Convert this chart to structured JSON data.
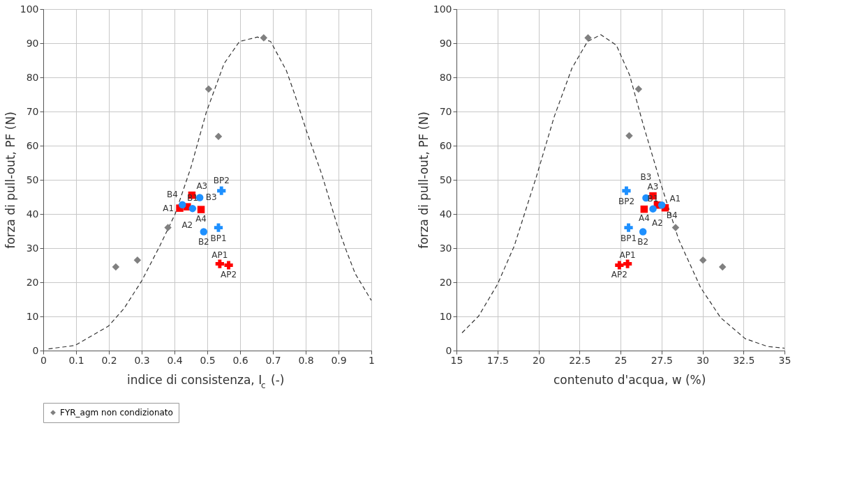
{
  "chart_data": [
    {
      "type": "scatter",
      "xlabel": "indice di consistenza, I$_{c}$ (-)",
      "ylabel": "forza di pull-out, PF (N)",
      "xlim": [
        0,
        1
      ],
      "ylim": [
        0,
        100
      ],
      "xticks": [
        0,
        0.1,
        0.2,
        0.3,
        0.4,
        0.5,
        0.6,
        0.7,
        0.8,
        0.9,
        1
      ],
      "yticks": [
        0,
        10,
        20,
        30,
        40,
        50,
        60,
        70,
        80,
        90,
        100
      ],
      "grid": true,
      "legend": "bottom",
      "series": [
        {
          "type": "line",
          "line_style": "dashed",
          "marker": "none",
          "color": "#333333",
          "x": [
            0.016,
            0.097,
            0.199,
            0.246,
            0.3,
            0.355,
            0.402,
            0.45,
            0.497,
            0.551,
            0.598,
            0.653,
            0.693,
            0.741,
            0.768,
            0.802,
            0.849,
            0.896,
            0.924,
            0.951,
            1.0
          ],
          "values": [
            0.5,
            1.5,
            7.2,
            12.3,
            20.4,
            30.6,
            40,
            53.6,
            69.8,
            84,
            90.5,
            91.8,
            90.5,
            82,
            74.6,
            64.4,
            51.6,
            36.7,
            29.2,
            22.5,
            14.7
          ]
        },
        {
          "name": "FYR_agm non condizionato",
          "marker": "diamond",
          "color": "#808080",
          "x": [
            0.221,
            0.287,
            0.38,
            0.504,
            0.534,
            0.672
          ],
          "values": [
            24.5,
            26.5,
            36.0,
            76.6,
            62.7,
            91.6
          ]
        },
        {
          "marker": "square",
          "color": "#ff0000",
          "x": [
            0.416,
            0.439,
            0.453,
            0.481
          ],
          "values": [
            41.7,
            42.1,
            45.5,
            41.3
          ],
          "value_labels": [
            "A1",
            "A2",
            "A3",
            "A4"
          ]
        },
        {
          "marker": "cross",
          "color": "#ff0000",
          "x": [
            0.538,
            0.565
          ],
          "values": [
            25.4,
            25.0
          ],
          "value_labels": [
            "AP1",
            "AP2"
          ]
        },
        {
          "marker": "circle",
          "color": "#1e90ff",
          "x": [
            0.455,
            0.489,
            0.477,
            0.424
          ],
          "values": [
            41.6,
            34.8,
            44.8,
            42.7
          ],
          "value_labels": [
            "B1",
            "B2",
            "B3",
            "B4"
          ]
        },
        {
          "marker": "cross",
          "color": "#1e90ff",
          "x": [
            0.534,
            0.543
          ],
          "values": [
            36.0,
            46.8
          ],
          "value_labels": [
            "BP1",
            "BP2"
          ]
        }
      ]
    },
    {
      "type": "scatter",
      "xlabel": "contenuto d'acqua, w (%)",
      "ylabel": "forza di pull-out, PF (N)",
      "xlim": [
        15,
        35
      ],
      "ylim": [
        0,
        100
      ],
      "xticks": [
        15,
        17.5,
        20,
        22.5,
        25,
        27.5,
        30,
        32.5,
        35
      ],
      "yticks": [
        0,
        10,
        20,
        30,
        40,
        50,
        60,
        70,
        80,
        90,
        100
      ],
      "grid": true,
      "legend": "bottom",
      "series": [
        {
          "type": "line",
          "line_style": "dashed",
          "marker": "none",
          "color": "#333333",
          "x": [
            15.34,
            16.35,
            17.5,
            18.52,
            19.87,
            20.96,
            22.04,
            22.99,
            23.8,
            24.75,
            25.56,
            26.37,
            27.46,
            28.54,
            29.89,
            31.11,
            32.6,
            33.96,
            35.0
          ],
          "values": [
            5.2,
            10.1,
            19.4,
            30.6,
            50.9,
            68.5,
            82.7,
            90.5,
            92.5,
            89.4,
            80.6,
            66.4,
            48.8,
            32.6,
            18.4,
            9.6,
            3.5,
            1.2,
            0.7
          ]
        },
        {
          "name": "FYR_agm non condizionato",
          "marker": "diamond",
          "color": "#808080",
          "x": [
            23.02,
            26.1,
            25.53,
            28.36,
            30.03,
            31.22
          ],
          "values": [
            91.6,
            76.6,
            62.9,
            36.0,
            26.5,
            24.5
          ]
        },
        {
          "marker": "square",
          "color": "#ff0000",
          "x": [
            27.72,
            27.25,
            26.98,
            26.44
          ],
          "values": [
            41.8,
            42.6,
            45.3,
            41.4
          ],
          "value_labels": [
            "A1",
            "A2",
            "A3",
            "A4"
          ]
        },
        {
          "marker": "cross",
          "color": "#ff0000",
          "x": [
            25.43,
            24.93
          ],
          "values": [
            25.4,
            25.0
          ],
          "value_labels": [
            "AP1",
            "AP2"
          ]
        },
        {
          "marker": "circle",
          "color": "#1e90ff",
          "x": [
            26.98,
            26.37,
            26.55,
            27.52
          ],
          "values": [
            41.5,
            34.8,
            44.7,
            42.6
          ],
          "value_labels": [
            "B1",
            "B2",
            "B3",
            "B4"
          ]
        },
        {
          "marker": "cross",
          "color": "#1e90ff",
          "x": [
            25.49,
            25.36
          ],
          "values": [
            36.0,
            46.8
          ],
          "value_labels": [
            "BP1",
            "BP2"
          ]
        }
      ]
    }
  ]
}
